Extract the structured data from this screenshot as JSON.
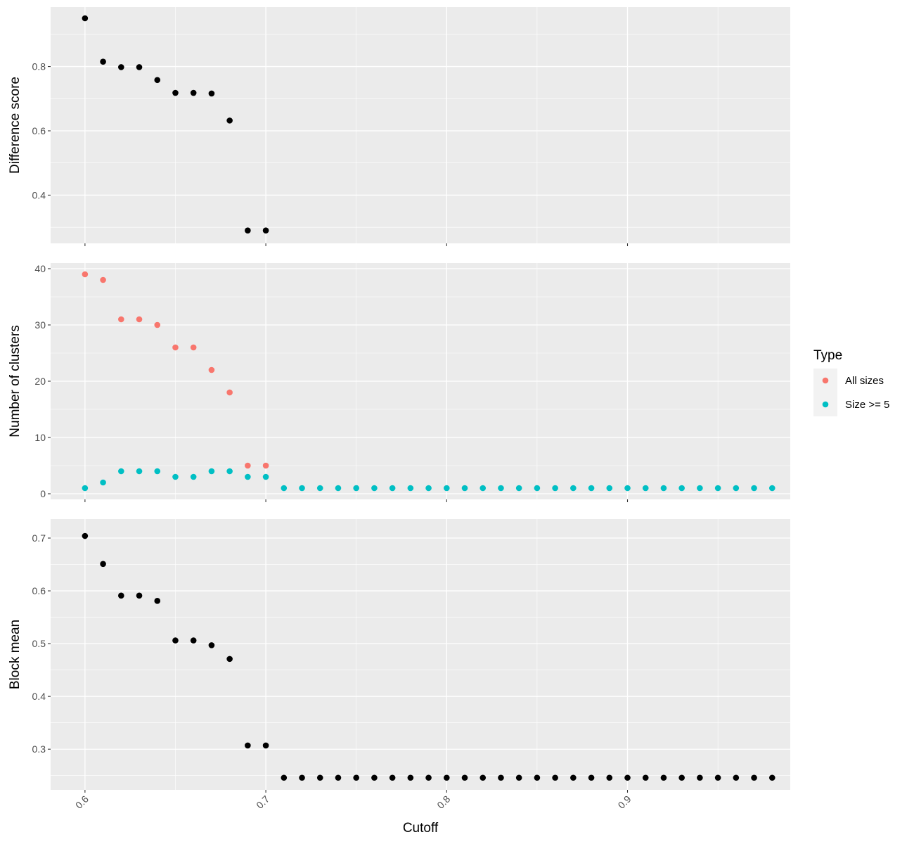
{
  "chart_data": {
    "type": "scatter",
    "xlabel": "Cutoff",
    "x_ticks": [
      "0.6",
      "0.7",
      "0.8",
      "0.9"
    ],
    "xlim": [
      0.581,
      0.99
    ],
    "legend": {
      "title": "Type",
      "placement": "right",
      "entries": [
        {
          "label": "All sizes",
          "color": "#F8766D"
        },
        {
          "label": "Size >= 5",
          "color": "#00BFC4"
        }
      ]
    },
    "panels": [
      {
        "ylabel": "Difference score",
        "ylim": [
          0.25,
          0.985
        ],
        "y_ticks": [
          "0.4",
          "0.6",
          "0.8"
        ],
        "series": [
          {
            "color": "#000000",
            "x": [
              0.6,
              0.61,
              0.62,
              0.63,
              0.64,
              0.65,
              0.66,
              0.67,
              0.68,
              0.69,
              0.7
            ],
            "y": [
              0.95,
              0.815,
              0.798,
              0.798,
              0.758,
              0.718,
              0.718,
              0.716,
              0.632,
              0.29,
              0.29
            ]
          }
        ]
      },
      {
        "ylabel": "Number of clusters",
        "ylim": [
          -1,
          41
        ],
        "y_ticks": [
          "0",
          "10",
          "20",
          "30",
          "40"
        ],
        "series": [
          {
            "name": "All sizes",
            "color": "#F8766D",
            "x": [
              0.6,
              0.61,
              0.62,
              0.63,
              0.64,
              0.65,
              0.66,
              0.67,
              0.68,
              0.69,
              0.7
            ],
            "y": [
              39,
              38,
              31,
              31,
              30,
              26,
              26,
              22,
              18,
              5,
              5
            ]
          },
          {
            "name": "Size >= 5",
            "color": "#00BFC4",
            "x": [
              0.6,
              0.61,
              0.62,
              0.63,
              0.64,
              0.65,
              0.66,
              0.67,
              0.68,
              0.69,
              0.7,
              0.71,
              0.72,
              0.73,
              0.74,
              0.75,
              0.76,
              0.77,
              0.78,
              0.79,
              0.8,
              0.81,
              0.82,
              0.83,
              0.84,
              0.85,
              0.86,
              0.87,
              0.88,
              0.89,
              0.9,
              0.91,
              0.92,
              0.93,
              0.94,
              0.95,
              0.96,
              0.97,
              0.98
            ],
            "y": [
              1,
              2,
              4,
              4,
              4,
              3,
              3,
              4,
              4,
              3,
              3,
              1,
              1,
              1,
              1,
              1,
              1,
              1,
              1,
              1,
              1,
              1,
              1,
              1,
              1,
              1,
              1,
              1,
              1,
              1,
              1,
              1,
              1,
              1,
              1,
              1,
              1,
              1,
              1
            ]
          }
        ]
      },
      {
        "ylabel": "Block mean",
        "ylim": [
          0.223,
          0.736
        ],
        "y_ticks": [
          "0.3",
          "0.4",
          "0.5",
          "0.6",
          "0.7"
        ],
        "series": [
          {
            "color": "#000000",
            "x": [
              0.6,
              0.61,
              0.62,
              0.63,
              0.64,
              0.65,
              0.66,
              0.67,
              0.68,
              0.69,
              0.7,
              0.71,
              0.72,
              0.73,
              0.74,
              0.75,
              0.76,
              0.77,
              0.78,
              0.79,
              0.8,
              0.81,
              0.82,
              0.83,
              0.84,
              0.85,
              0.86,
              0.87,
              0.88,
              0.89,
              0.9,
              0.91,
              0.92,
              0.93,
              0.94,
              0.95,
              0.96,
              0.97,
              0.98
            ],
            "y": [
              0.704,
              0.651,
              0.591,
              0.591,
              0.581,
              0.506,
              0.506,
              0.497,
              0.471,
              0.307,
              0.307,
              0.246,
              0.246,
              0.246,
              0.246,
              0.246,
              0.246,
              0.246,
              0.246,
              0.246,
              0.246,
              0.246,
              0.246,
              0.246,
              0.246,
              0.246,
              0.246,
              0.246,
              0.246,
              0.246,
              0.246,
              0.246,
              0.246,
              0.246,
              0.246,
              0.246,
              0.246,
              0.246,
              0.246
            ]
          }
        ]
      }
    ]
  }
}
